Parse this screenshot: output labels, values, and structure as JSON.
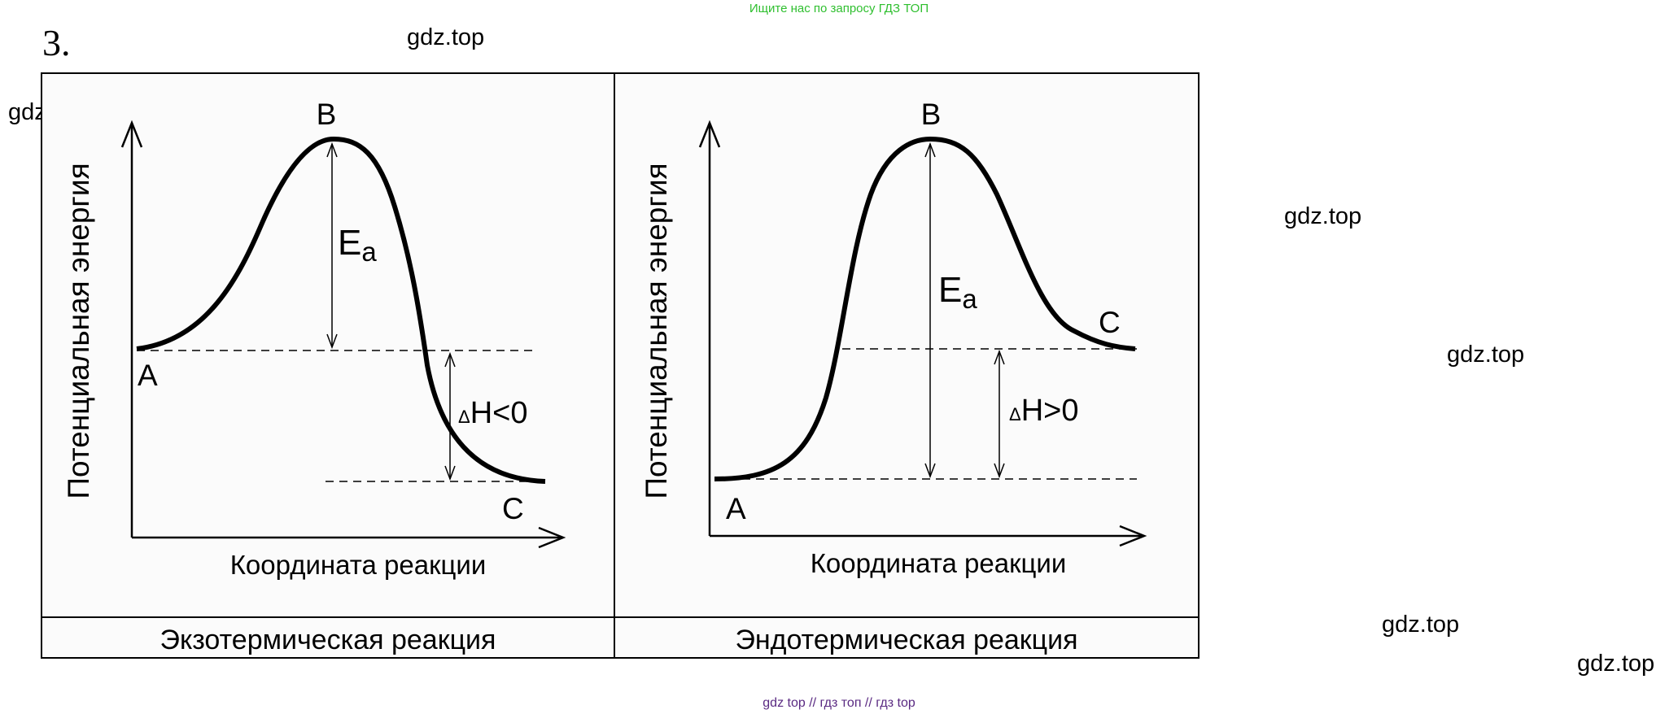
{
  "top_banner": "Ищите нас по запросу ГДЗ ТОП",
  "task_number": "3.",
  "watermark_text": "gdz.top",
  "footer": "gdz top  //  гдз топ  //  гдз top",
  "panels": [
    {
      "y_axis_label": "Потенциальная  энергия",
      "x_axis_label": "Координата реакции",
      "caption": "Экзотермическая реакция",
      "point_a": "A",
      "point_b": "B",
      "point_c": "C",
      "ea_main": "E",
      "ea_sub": "a",
      "dh_delta": "Δ",
      "dh_text": "H<0"
    },
    {
      "y_axis_label": "Потенциальная  энергия",
      "x_axis_label": "Координата реакции",
      "caption": "Эндотермическая реакция",
      "point_a": "A",
      "point_b": "B",
      "point_c": "C",
      "ea_main": "E",
      "ea_sub": "a",
      "dh_delta": "Δ",
      "dh_text": "H>0"
    }
  ]
}
